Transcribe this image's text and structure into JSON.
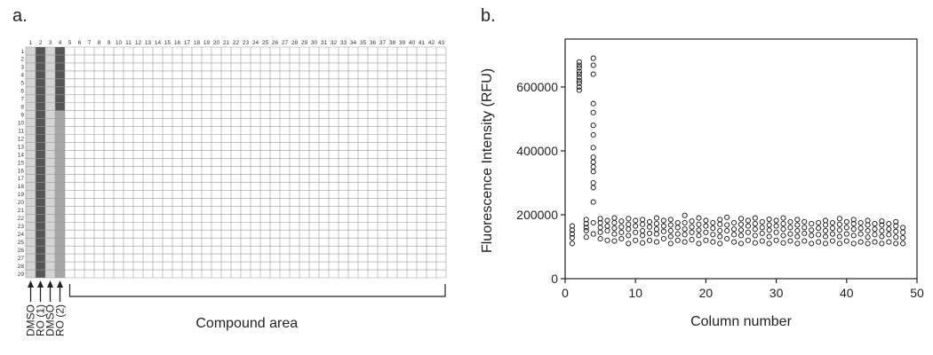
{
  "panel_a": {
    "label": "a.",
    "column_labels": [
      "1",
      "2",
      "3",
      "4",
      "5",
      "6",
      "7",
      "8",
      "9",
      "10",
      "11",
      "12",
      "13",
      "14",
      "15",
      "16",
      "17",
      "18",
      "19",
      "20",
      "21",
      "22",
      "23",
      "24",
      "25",
      "26",
      "27",
      "28",
      "29",
      "30",
      "31",
      "32",
      "33",
      "34",
      "35",
      "36",
      "37",
      "38",
      "39",
      "40",
      "41",
      "42",
      "43"
    ],
    "row_labels": [
      "1",
      "2",
      "3",
      "4",
      "5",
      "6",
      "7",
      "8",
      "9",
      "10",
      "11",
      "12",
      "13",
      "14",
      "15",
      "16",
      "17",
      "18",
      "19",
      "20",
      "21",
      "22",
      "23",
      "24",
      "25",
      "26",
      "27",
      "28",
      "29"
    ],
    "control_columns": [
      {
        "name": "DMSO",
        "column": 1,
        "fill": "#d4d4d4"
      },
      {
        "name": "RO (1)",
        "column": 2,
        "fill": "#555555"
      },
      {
        "name": "DMSO",
        "column": 3,
        "fill": "#d4d4d4"
      },
      {
        "name": "RO (2)",
        "column": 4,
        "fill_top": "#555555",
        "fill_bottom": "#a6a6a6",
        "split_after_row": 8
      }
    ],
    "compound_area_label": "Compound area"
  },
  "panel_b": {
    "label": "b."
  },
  "chart_data": {
    "type": "scatter",
    "xlabel": "Column number",
    "ylabel": "Fluorescence Intensity (RFU)",
    "xlim": [
      0,
      50
    ],
    "ylim": [
      0,
      750000
    ],
    "xticks": [
      0,
      10,
      20,
      30,
      40,
      50
    ],
    "xtick_labels": [
      "0",
      "10",
      "20",
      "30",
      "40",
      "50"
    ],
    "yticks": [
      0,
      200000,
      400000,
      600000
    ],
    "ytick_labels": [
      "0",
      "200000",
      "400000",
      "600000"
    ],
    "grid": false,
    "marker": "open-circle",
    "series": [
      {
        "points": [
          [
            1,
            110000
          ],
          [
            1,
            128000
          ],
          [
            1,
            140000
          ],
          [
            1,
            152000
          ],
          [
            1,
            165000
          ],
          [
            2,
            590000
          ],
          [
            2,
            600000
          ],
          [
            2,
            612000
          ],
          [
            2,
            620000
          ],
          [
            2,
            630000
          ],
          [
            2,
            640000
          ],
          [
            2,
            648000
          ],
          [
            2,
            660000
          ],
          [
            2,
            668000
          ],
          [
            2,
            678000
          ],
          [
            3,
            130000
          ],
          [
            3,
            150000
          ],
          [
            3,
            160000
          ],
          [
            3,
            172000
          ],
          [
            3,
            185000
          ],
          [
            4,
            140000
          ],
          [
            4,
            175000
          ],
          [
            4,
            240000
          ],
          [
            4,
            285000
          ],
          [
            4,
            300000
          ],
          [
            4,
            335000
          ],
          [
            4,
            350000
          ],
          [
            4,
            365000
          ],
          [
            4,
            380000
          ],
          [
            4,
            410000
          ],
          [
            4,
            450000
          ],
          [
            4,
            480000
          ],
          [
            4,
            520000
          ],
          [
            4,
            548000
          ],
          [
            4,
            640000
          ],
          [
            4,
            668000
          ],
          [
            4,
            690000
          ],
          [
            5,
            125000
          ],
          [
            5,
            145000
          ],
          [
            5,
            160000
          ],
          [
            5,
            175000
          ],
          [
            5,
            188000
          ],
          [
            6,
            120000
          ],
          [
            6,
            150000
          ],
          [
            6,
            165000
          ],
          [
            6,
            182000
          ],
          [
            7,
            118000
          ],
          [
            7,
            140000
          ],
          [
            7,
            158000
          ],
          [
            7,
            175000
          ],
          [
            7,
            190000
          ],
          [
            8,
            125000
          ],
          [
            8,
            145000
          ],
          [
            8,
            162000
          ],
          [
            8,
            180000
          ],
          [
            9,
            110000
          ],
          [
            9,
            135000
          ],
          [
            9,
            155000
          ],
          [
            9,
            170000
          ],
          [
            9,
            188000
          ],
          [
            10,
            120000
          ],
          [
            10,
            145000
          ],
          [
            10,
            165000
          ],
          [
            10,
            182000
          ],
          [
            11,
            112000
          ],
          [
            11,
            135000
          ],
          [
            11,
            150000
          ],
          [
            11,
            170000
          ],
          [
            11,
            185000
          ],
          [
            12,
            120000
          ],
          [
            12,
            142000
          ],
          [
            12,
            162000
          ],
          [
            12,
            178000
          ],
          [
            13,
            115000
          ],
          [
            13,
            140000
          ],
          [
            13,
            155000
          ],
          [
            13,
            172000
          ],
          [
            13,
            190000
          ],
          [
            14,
            125000
          ],
          [
            14,
            148000
          ],
          [
            14,
            165000
          ],
          [
            14,
            182000
          ],
          [
            15,
            110000
          ],
          [
            15,
            132000
          ],
          [
            15,
            150000
          ],
          [
            15,
            168000
          ],
          [
            15,
            185000
          ],
          [
            16,
            120000
          ],
          [
            16,
            140000
          ],
          [
            16,
            160000
          ],
          [
            16,
            175000
          ],
          [
            17,
            115000
          ],
          [
            17,
            138000
          ],
          [
            17,
            155000
          ],
          [
            17,
            175000
          ],
          [
            17,
            198000
          ],
          [
            18,
            122000
          ],
          [
            18,
            145000
          ],
          [
            18,
            162000
          ],
          [
            18,
            180000
          ],
          [
            19,
            110000
          ],
          [
            19,
            135000
          ],
          [
            19,
            152000
          ],
          [
            19,
            170000
          ],
          [
            19,
            190000
          ],
          [
            20,
            120000
          ],
          [
            20,
            145000
          ],
          [
            20,
            165000
          ],
          [
            20,
            182000
          ],
          [
            21,
            115000
          ],
          [
            21,
            138000
          ],
          [
            21,
            158000
          ],
          [
            21,
            175000
          ],
          [
            22,
            110000
          ],
          [
            22,
            132000
          ],
          [
            22,
            150000
          ],
          [
            22,
            170000
          ],
          [
            22,
            185000
          ],
          [
            23,
            125000
          ],
          [
            23,
            150000
          ],
          [
            23,
            168000
          ],
          [
            23,
            192000
          ],
          [
            24,
            115000
          ],
          [
            24,
            138000
          ],
          [
            24,
            155000
          ],
          [
            24,
            175000
          ],
          [
            25,
            110000
          ],
          [
            25,
            135000
          ],
          [
            25,
            152000
          ],
          [
            25,
            170000
          ],
          [
            25,
            188000
          ],
          [
            26,
            120000
          ],
          [
            26,
            145000
          ],
          [
            26,
            165000
          ],
          [
            26,
            182000
          ],
          [
            27,
            112000
          ],
          [
            27,
            135000
          ],
          [
            27,
            155000
          ],
          [
            27,
            172000
          ],
          [
            27,
            190000
          ],
          [
            28,
            118000
          ],
          [
            28,
            142000
          ],
          [
            28,
            160000
          ],
          [
            28,
            178000
          ],
          [
            29,
            110000
          ],
          [
            29,
            132000
          ],
          [
            29,
            152000
          ],
          [
            29,
            168000
          ],
          [
            29,
            186000
          ],
          [
            30,
            120000
          ],
          [
            30,
            145000
          ],
          [
            30,
            165000
          ],
          [
            30,
            182000
          ],
          [
            31,
            112000
          ],
          [
            31,
            135000
          ],
          [
            31,
            155000
          ],
          [
            31,
            172000
          ],
          [
            31,
            190000
          ],
          [
            32,
            118000
          ],
          [
            32,
            140000
          ],
          [
            32,
            160000
          ],
          [
            32,
            178000
          ],
          [
            33,
            110000
          ],
          [
            33,
            132000
          ],
          [
            33,
            150000
          ],
          [
            33,
            168000
          ],
          [
            33,
            185000
          ],
          [
            34,
            118000
          ],
          [
            34,
            142000
          ],
          [
            34,
            160000
          ],
          [
            34,
            178000
          ],
          [
            35,
            110000
          ],
          [
            35,
            135000
          ],
          [
            35,
            152000
          ],
          [
            35,
            172000
          ],
          [
            36,
            115000
          ],
          [
            36,
            138000
          ],
          [
            36,
            158000
          ],
          [
            36,
            175000
          ],
          [
            37,
            110000
          ],
          [
            37,
            132000
          ],
          [
            37,
            150000
          ],
          [
            37,
            168000
          ],
          [
            37,
            182000
          ],
          [
            38,
            118000
          ],
          [
            38,
            140000
          ],
          [
            38,
            158000
          ],
          [
            38,
            175000
          ],
          [
            39,
            110000
          ],
          [
            39,
            132000
          ],
          [
            39,
            152000
          ],
          [
            39,
            170000
          ],
          [
            39,
            188000
          ],
          [
            40,
            118000
          ],
          [
            40,
            140000
          ],
          [
            40,
            160000
          ],
          [
            40,
            178000
          ],
          [
            41,
            110000
          ],
          [
            41,
            135000
          ],
          [
            41,
            155000
          ],
          [
            41,
            172000
          ],
          [
            41,
            185000
          ],
          [
            42,
            115000
          ],
          [
            42,
            140000
          ],
          [
            42,
            158000
          ],
          [
            42,
            175000
          ],
          [
            43,
            110000
          ],
          [
            43,
            130000
          ],
          [
            43,
            150000
          ],
          [
            43,
            168000
          ],
          [
            43,
            182000
          ],
          [
            44,
            115000
          ],
          [
            44,
            138000
          ],
          [
            44,
            155000
          ],
          [
            44,
            172000
          ],
          [
            45,
            110000
          ],
          [
            45,
            132000
          ],
          [
            45,
            150000
          ],
          [
            45,
            168000
          ],
          [
            45,
            180000
          ],
          [
            46,
            115000
          ],
          [
            46,
            138000
          ],
          [
            46,
            155000
          ],
          [
            46,
            172000
          ],
          [
            47,
            110000
          ],
          [
            47,
            130000
          ],
          [
            47,
            148000
          ],
          [
            47,
            165000
          ],
          [
            47,
            178000
          ],
          [
            48,
            110000
          ],
          [
            48,
            128000
          ],
          [
            48,
            145000
          ],
          [
            48,
            160000
          ]
        ]
      }
    ]
  }
}
